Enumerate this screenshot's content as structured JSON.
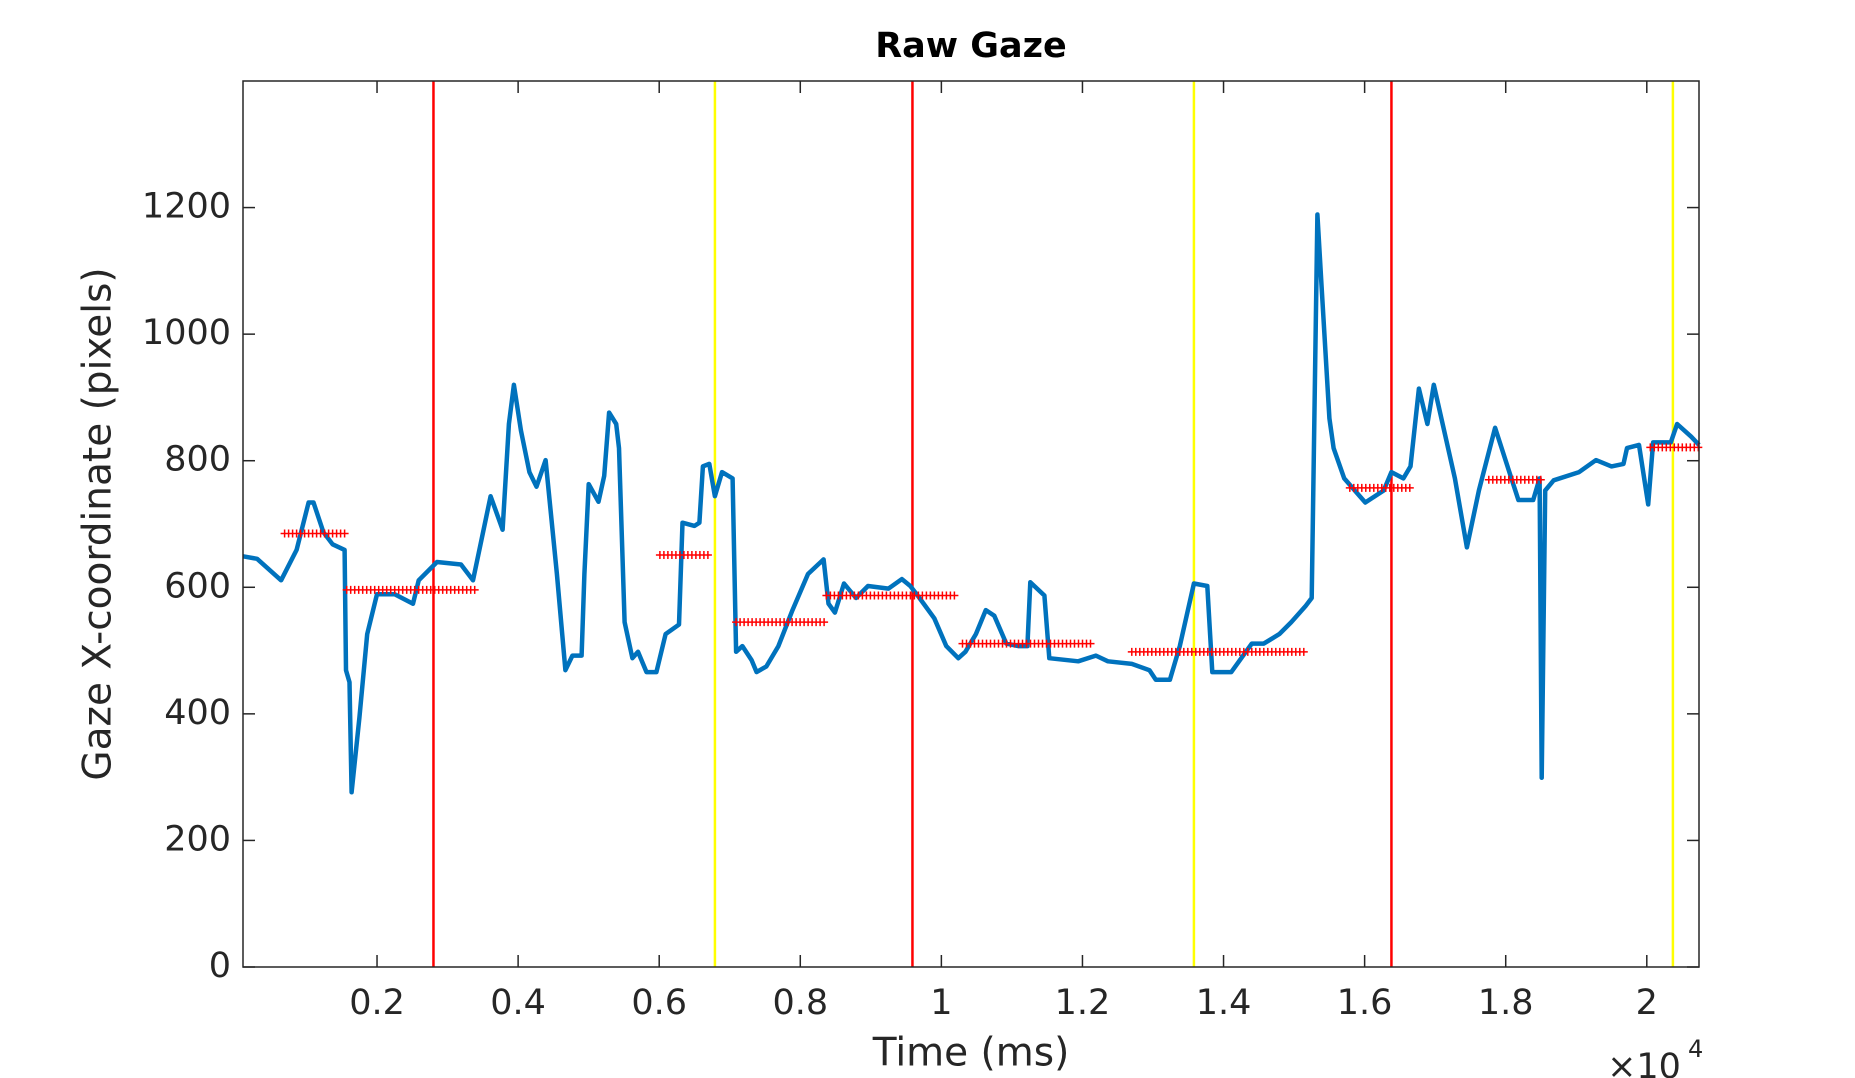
{
  "chart_data": {
    "type": "line",
    "title": "Raw Gaze",
    "x_label": "Time (ms)",
    "y_label": "Gaze X-coordinate (pixels)",
    "x_multiplier": "×10",
    "x_multiplier_exponent": 4,
    "xlim": [
      100,
      20740
    ],
    "ylim": [
      0,
      1400
    ],
    "xticks": [
      {
        "value": 2000,
        "label": "0.2"
      },
      {
        "value": 4000,
        "label": "0.4"
      },
      {
        "value": 6000,
        "label": "0.6"
      },
      {
        "value": 8000,
        "label": "0.8"
      },
      {
        "value": 10000,
        "label": "1"
      },
      {
        "value": 12000,
        "label": "1.2"
      },
      {
        "value": 14000,
        "label": "1.4"
      },
      {
        "value": 16000,
        "label": "1.6"
      },
      {
        "value": 18000,
        "label": "1.8"
      },
      {
        "value": 20000,
        "label": "2"
      }
    ],
    "yticks": [
      0,
      200,
      400,
      600,
      800,
      1000,
      1200
    ],
    "gaze": {
      "color": "#0072bd",
      "x": [
        100,
        300,
        640,
        860,
        1030,
        1100,
        1240,
        1370,
        1540,
        1560,
        1610,
        1640,
        1750,
        1860,
        2000,
        2250,
        2510,
        2590,
        2850,
        3190,
        3360,
        3610,
        3780,
        3870,
        3940,
        4040,
        4160,
        4260,
        4390,
        4550,
        4670,
        4770,
        4900,
        4940,
        5000,
        5140,
        5220,
        5290,
        5390,
        5430,
        5510,
        5620,
        5700,
        5820,
        5960,
        6090,
        6280,
        6330,
        6500,
        6570,
        6620,
        6710,
        6790,
        6890,
        7040,
        7090,
        7180,
        7310,
        7380,
        7520,
        7690,
        7890,
        8110,
        8330,
        8400,
        8490,
        8620,
        8790,
        8960,
        9250,
        9440,
        9560,
        9690,
        9900,
        10070,
        10240,
        10340,
        10490,
        10630,
        10750,
        10920,
        11090,
        11220,
        11260,
        11460,
        11530,
        11940,
        12190,
        12360,
        12700,
        12950,
        13040,
        13240,
        13380,
        13580,
        13770,
        13840,
        14110,
        14400,
        14570,
        14790,
        14960,
        15160,
        15250,
        15330,
        15390,
        15500,
        15560,
        15710,
        16010,
        16270,
        16380,
        16550,
        16650,
        16770,
        16890,
        16980,
        17280,
        17450,
        17620,
        17850,
        18080,
        18180,
        18390,
        18480,
        18510,
        18560,
        18680,
        19040,
        19280,
        19500,
        19670,
        19720,
        19890,
        20020,
        20090,
        20340,
        20430,
        20630,
        20740
      ],
      "y": [
        649,
        645,
        611,
        659,
        734,
        734,
        687,
        668,
        659,
        469,
        450,
        276,
        394,
        526,
        589,
        589,
        574,
        611,
        640,
        636,
        611,
        744,
        691,
        858,
        920,
        848,
        782,
        759,
        801,
        621,
        469,
        492,
        492,
        621,
        763,
        735,
        776,
        876,
        858,
        820,
        545,
        488,
        498,
        466,
        466,
        526,
        541,
        702,
        697,
        702,
        791,
        795,
        744,
        782,
        772,
        498,
        507,
        485,
        466,
        475,
        507,
        564,
        621,
        644,
        574,
        560,
        606,
        583,
        602,
        598,
        613,
        602,
        583,
        551,
        507,
        488,
        498,
        526,
        564,
        555,
        511,
        507,
        507,
        608,
        587,
        488,
        483,
        492,
        483,
        479,
        469,
        454,
        454,
        507,
        606,
        602,
        466,
        466,
        511,
        511,
        526,
        545,
        570,
        583,
        1189,
        1075,
        867,
        820,
        772,
        734,
        753,
        782,
        772,
        791,
        914,
        858,
        920,
        772,
        663,
        753,
        852,
        772,
        738,
        738,
        772,
        299,
        753,
        769,
        782,
        801,
        791,
        795,
        820,
        825,
        731,
        829,
        829,
        858,
        838,
        825
      ]
    },
    "fixations": {
      "color": "#ff0000",
      "x_start": [
        690,
        1570,
        6010,
        7090,
        8370,
        10300,
        12700,
        15790,
        17760,
        20050
      ],
      "x_end": [
        1570,
        3440,
        6740,
        8370,
        10200,
        12140,
        15160,
        16690,
        18550,
        20740
      ],
      "y": [
        685,
        596,
        651,
        545,
        587,
        511,
        498,
        757,
        770,
        821
      ]
    },
    "events": {
      "x": [
        2800,
        6790,
        9590,
        13580,
        16380,
        20370
      ],
      "colors": [
        "#ff0000",
        "#ffff00",
        "#ff0000",
        "#ffff00",
        "#ff0000",
        "#ffff00"
      ]
    }
  }
}
